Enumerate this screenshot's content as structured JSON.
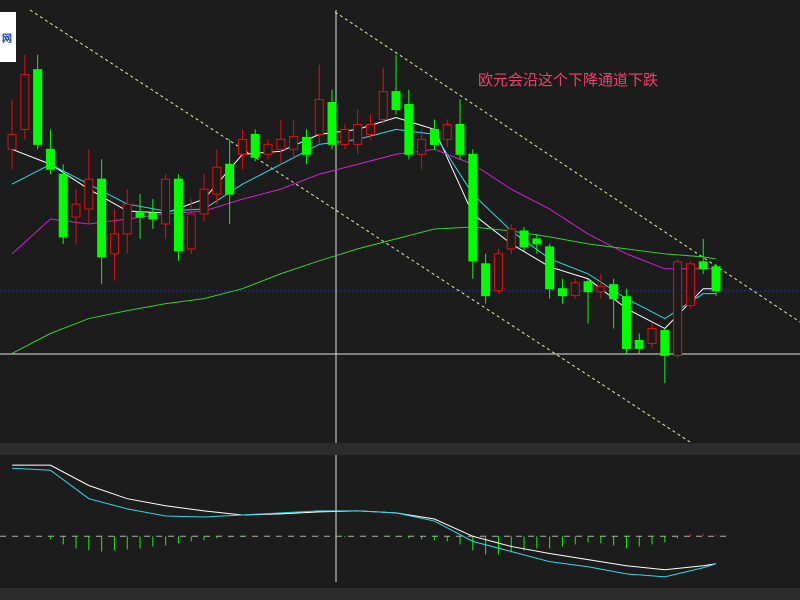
{
  "logo_text": "网",
  "chart_data": {
    "type": "candlestick",
    "annotation": "欧元会沿这个下降通道下跌",
    "annotation_color": "#f0406a",
    "up_color": "#e01010",
    "down_color": "#00ff00",
    "xlim": [
      -0.94,
      61.56
    ],
    "ylim": [
      0,
      445
    ],
    "candles": [
      [
        295,
        345,
        275,
        310
      ],
      [
        315,
        390,
        305,
        370
      ],
      [
        375,
        390,
        295,
        300
      ],
      [
        295,
        315,
        270,
        275
      ],
      [
        270,
        280,
        200,
        207
      ],
      [
        227,
        255,
        200,
        240
      ],
      [
        235,
        295,
        220,
        265
      ],
      [
        265,
        285,
        160,
        187
      ],
      [
        190,
        235,
        163,
        210
      ],
      [
        210,
        255,
        190,
        240
      ],
      [
        232,
        250,
        205,
        227
      ],
      [
        231,
        245,
        215,
        225
      ],
      [
        220,
        270,
        205,
        265
      ],
      [
        265,
        270,
        183,
        193
      ],
      [
        195,
        245,
        190,
        230
      ],
      [
        230,
        270,
        223,
        255
      ],
      [
        250,
        295,
        240,
        277
      ],
      [
        280,
        305,
        220,
        250
      ],
      [
        290,
        315,
        275,
        305
      ],
      [
        310,
        315,
        283,
        287
      ],
      [
        290,
        305,
        285,
        300
      ],
      [
        295,
        325,
        280,
        305
      ],
      [
        295,
        325,
        285,
        308
      ],
      [
        307,
        315,
        280,
        290
      ],
      [
        310,
        380,
        300,
        345
      ],
      [
        342,
        355,
        295,
        300
      ],
      [
        300,
        320,
        295,
        315
      ],
      [
        300,
        335,
        290,
        320
      ],
      [
        310,
        330,
        305,
        320
      ],
      [
        325,
        377,
        320,
        353
      ],
      [
        353,
        390,
        330,
        335
      ],
      [
        340,
        355,
        285,
        290
      ],
      [
        290,
        315,
        275,
        305
      ],
      [
        315,
        325,
        295,
        300
      ],
      [
        305,
        325,
        297,
        320
      ],
      [
        320,
        345,
        285,
        290
      ],
      [
        290,
        295,
        165,
        183
      ],
      [
        180,
        190,
        140,
        148
      ],
      [
        153,
        195,
        150,
        190
      ],
      [
        195,
        220,
        190,
        215
      ],
      [
        213,
        217,
        193,
        197
      ],
      [
        205,
        210,
        190,
        200
      ],
      [
        197,
        200,
        145,
        155
      ],
      [
        155,
        165,
        140,
        148
      ],
      [
        148,
        165,
        145,
        161
      ],
      [
        162,
        165,
        120,
        152
      ],
      [
        152,
        170,
        145,
        157
      ],
      [
        159,
        165,
        115,
        145
      ],
      [
        147,
        155,
        90,
        95
      ],
      [
        103,
        110,
        90,
        95
      ],
      [
        100,
        120,
        95,
        115
      ],
      [
        113,
        115,
        60,
        88
      ],
      [
        88,
        185,
        85,
        182
      ],
      [
        138,
        183,
        135,
        180
      ],
      [
        182,
        205,
        170,
        175
      ],
      [
        177,
        180,
        148,
        153
      ]
    ],
    "lines": [
      {
        "color": "#ffffff",
        "x": [
          0,
          3,
          6,
          9,
          12,
          15,
          18,
          21,
          24,
          27,
          30,
          33,
          36,
          39,
          42,
          45,
          48,
          51,
          54,
          55
        ],
        "values": [
          295,
          280,
          255,
          233,
          231,
          245,
          290,
          293,
          310,
          315,
          327,
          315,
          230,
          200,
          177,
          165,
          135,
          115,
          155,
          155
        ]
      },
      {
        "color": "#30d8e8",
        "x": [
          0,
          3,
          6,
          9,
          12,
          15,
          18,
          21,
          24,
          27,
          30,
          33,
          36,
          39,
          42,
          45,
          48,
          51,
          54,
          55
        ],
        "values": [
          260,
          280,
          260,
          240,
          233,
          235,
          260,
          280,
          300,
          305,
          315,
          310,
          250,
          213,
          185,
          170,
          145,
          125,
          150,
          150
        ]
      },
      {
        "color": "#d020d0",
        "x": [
          0,
          3,
          6,
          9,
          12,
          15,
          18,
          21,
          24,
          27,
          30,
          33,
          36,
          39,
          42,
          45,
          48,
          51,
          54,
          55
        ],
        "values": [
          190,
          225,
          220,
          225,
          230,
          233,
          245,
          255,
          270,
          280,
          290,
          295,
          280,
          255,
          235,
          210,
          190,
          175,
          175,
          175
        ]
      },
      {
        "color": "#30d030",
        "x": [
          0,
          3,
          6,
          9,
          12,
          15,
          18,
          21,
          24,
          27,
          30,
          33,
          36,
          39,
          42,
          45,
          48,
          51,
          54,
          55
        ],
        "values": [
          90,
          110,
          125,
          133,
          140,
          145,
          155,
          170,
          183,
          195,
          205,
          215,
          217,
          213,
          207,
          200,
          195,
          190,
          187,
          185
        ]
      }
    ],
    "indicator": {
      "ylim": [
        -45,
        80
      ],
      "lines": [
        {
          "color": "#ffffff",
          "x": [
            0,
            3,
            6,
            9,
            12,
            15,
            18,
            21,
            24,
            27,
            30,
            33,
            36,
            39,
            42,
            45,
            48,
            51,
            54,
            55
          ],
          "values": [
            70,
            70,
            50,
            37,
            30,
            25,
            21,
            22,
            24,
            25,
            23,
            17,
            0,
            -10,
            -17,
            -23,
            -29,
            -33,
            -29,
            -27
          ]
        },
        {
          "color": "#30d8e8",
          "x": [
            0,
            3,
            6,
            9,
            12,
            15,
            18,
            21,
            24,
            27,
            30,
            33,
            36,
            39,
            42,
            45,
            48,
            51,
            54,
            55
          ],
          "values": [
            67,
            65,
            37,
            27,
            20,
            19,
            21,
            23,
            25,
            25,
            23,
            15,
            -5,
            -15,
            -25,
            -30,
            -37,
            -40,
            -31,
            -27
          ]
        }
      ],
      "histogram": [
        0,
        1,
        0,
        -3,
        -8,
        -12,
        -14,
        -15,
        -14,
        -13,
        -12,
        -10,
        -9,
        -7,
        -5,
        -4,
        -2,
        -1,
        -1,
        0,
        0,
        1,
        0,
        0,
        1,
        0,
        -1,
        0,
        0,
        0,
        -1,
        -2,
        -3,
        -4,
        -5,
        -8,
        -14,
        -18,
        -18,
        -16,
        -14,
        -12,
        -12,
        -10,
        -8,
        -6,
        -7,
        -9,
        -12,
        -10,
        -8,
        -6,
        -2,
        2,
        3,
        2
      ]
    }
  }
}
